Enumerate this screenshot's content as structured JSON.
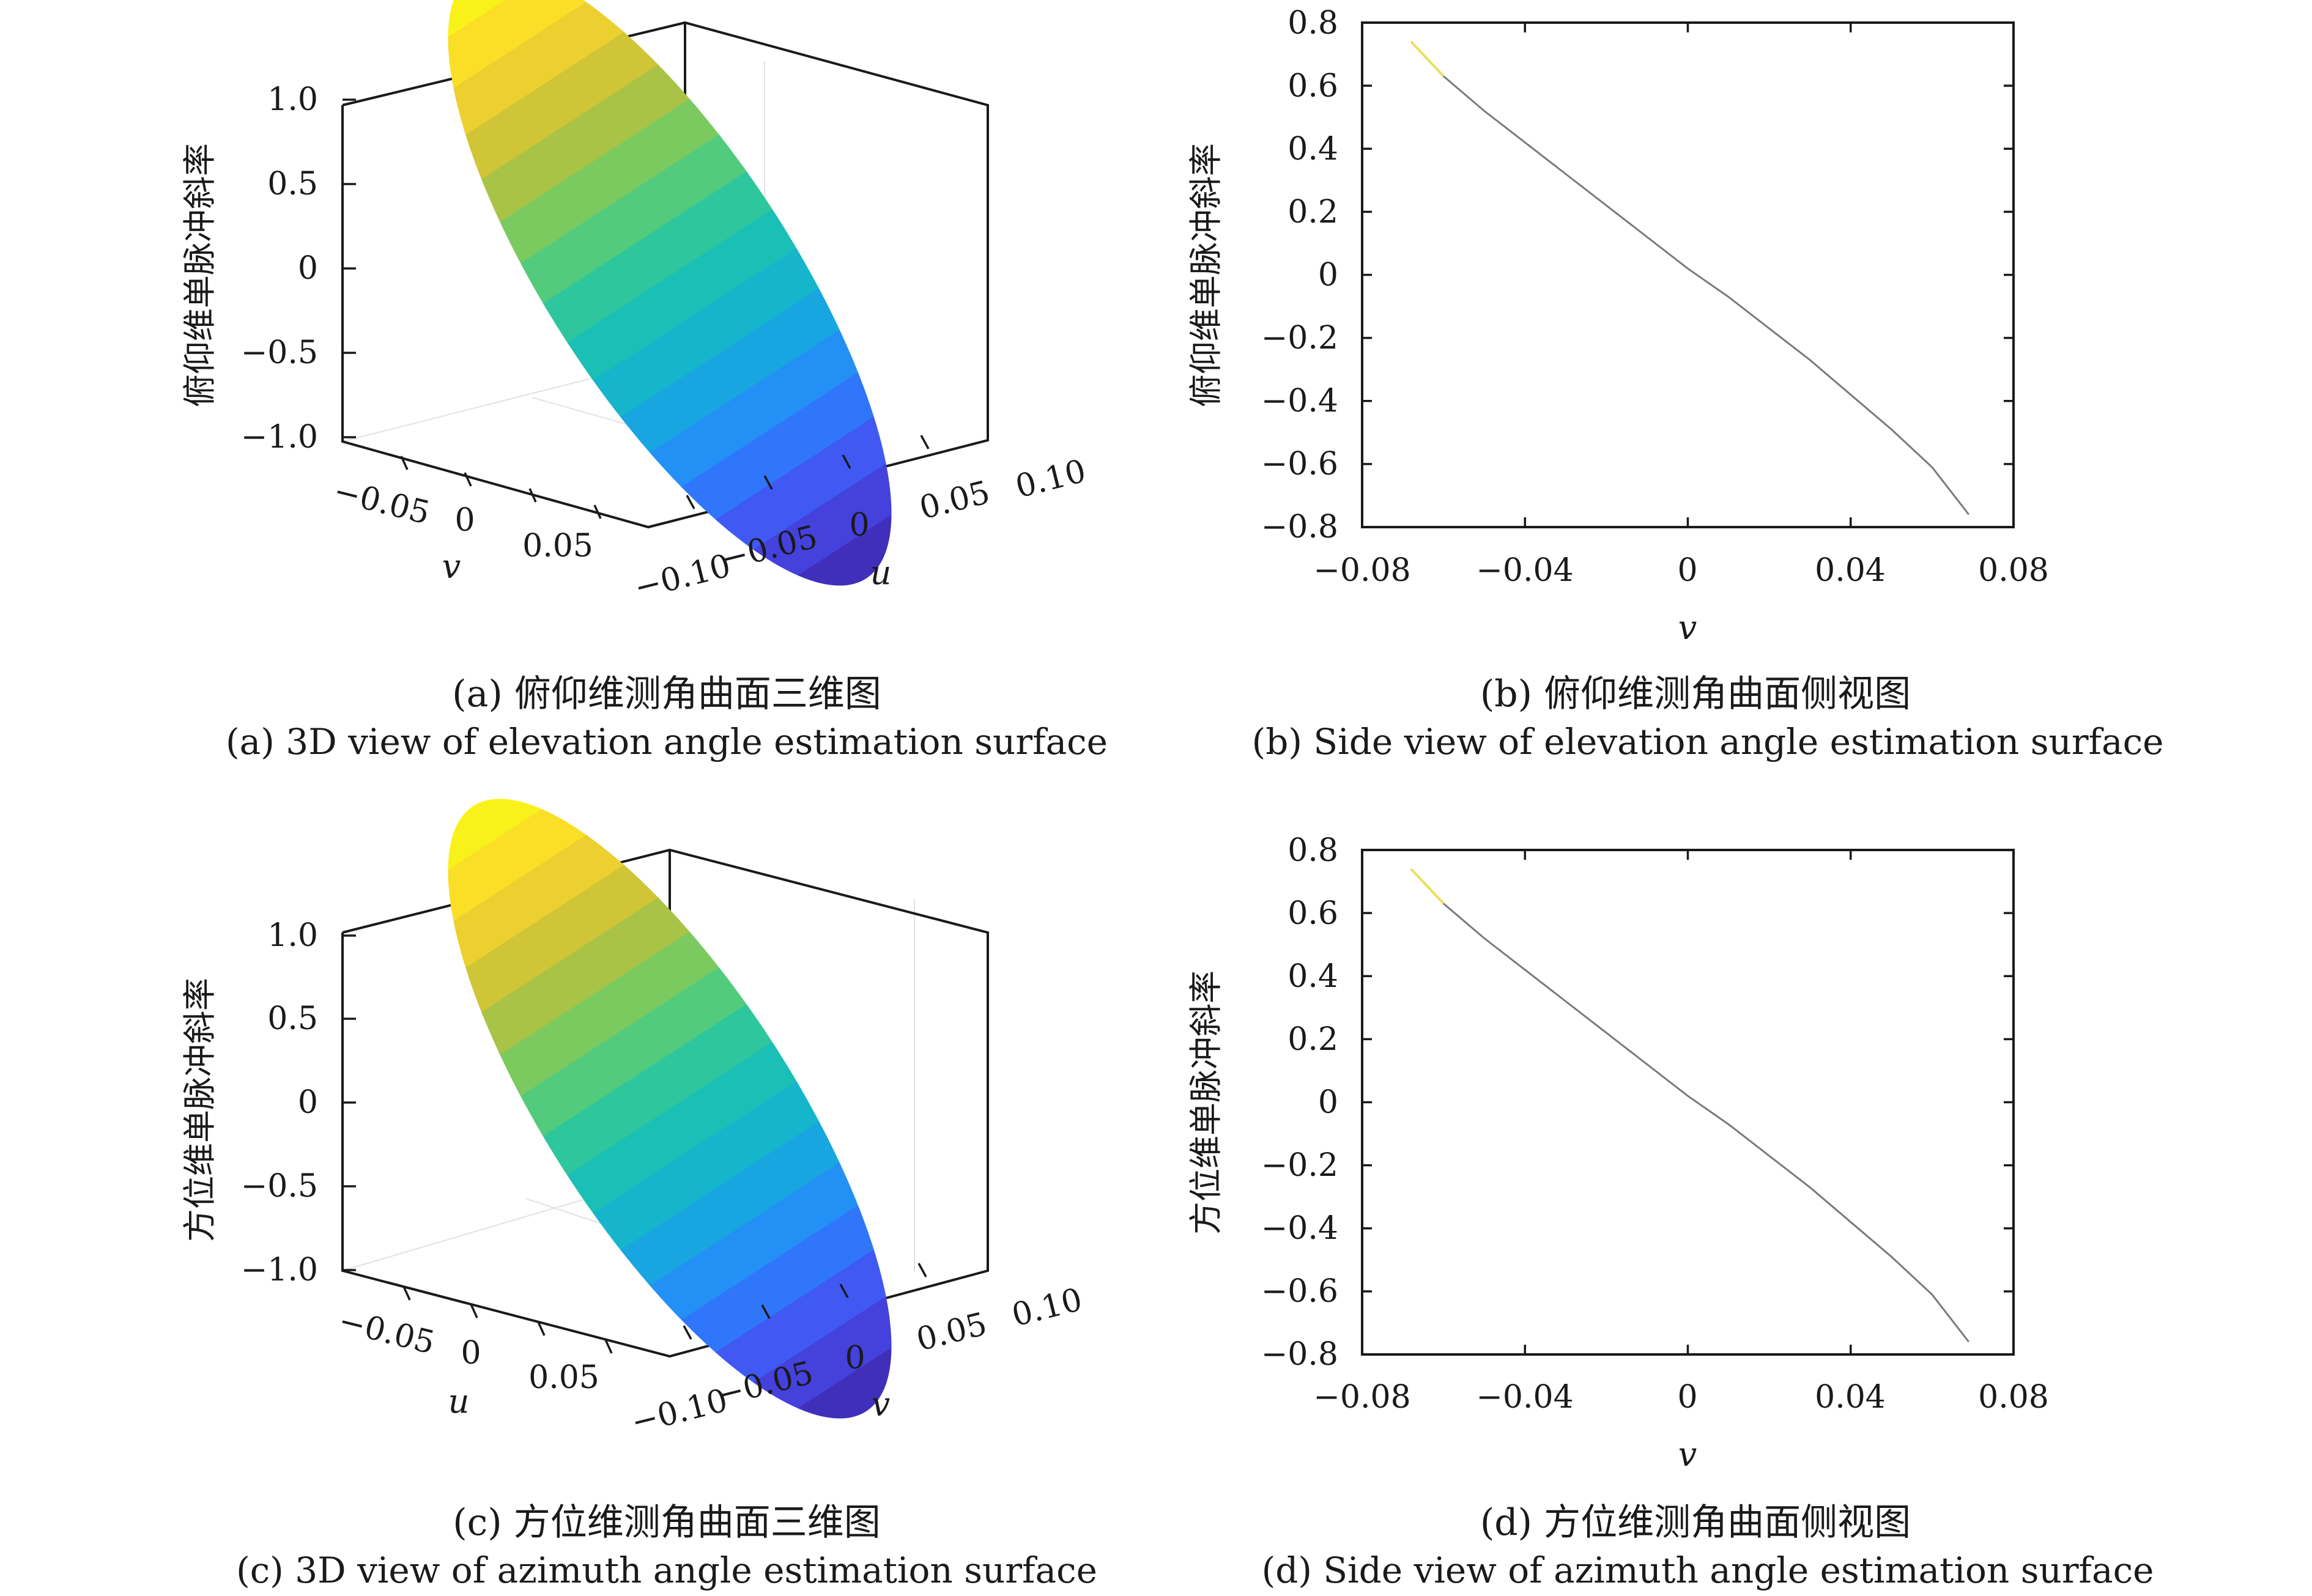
{
  "chart_data": [
    {
      "id": "a",
      "type": "surface3d",
      "zlabel": "俯仰维单脉冲斜率",
      "xlabel": "v",
      "ylabel": "u",
      "xticks": [
        "−0.05",
        "0",
        "0.05"
      ],
      "yticks": [
        "−0.10",
        "−0.05",
        "0",
        "0.05",
        "0.10"
      ],
      "zticks": [
        "1.0",
        "0.5",
        "0",
        "−0.5",
        "−1.0"
      ],
      "zlim": [
        -1.0,
        1.0
      ],
      "surface": {
        "shape": "ellipse",
        "z_range": [
          -0.78,
          0.78
        ],
        "colormap": "parula",
        "bands": 16
      },
      "caption_zh": "(a) 俯仰维测角曲面三维图",
      "caption_en": "(a) 3D view of elevation angle estimation surface"
    },
    {
      "id": "b",
      "type": "line",
      "ylabel": "俯仰维单脉冲斜率",
      "xlabel": "v",
      "xticks": [
        "−0.08",
        "−0.04",
        "0",
        "0.04",
        "0.08"
      ],
      "yticks": [
        "0.8",
        "0.6",
        "0.4",
        "0.2",
        "0",
        "−0.2",
        "−0.4",
        "−0.6",
        "−0.8"
      ],
      "xlim": [
        -0.08,
        0.08
      ],
      "ylim": [
        -0.8,
        0.8
      ],
      "series": [
        {
          "x": [
            -0.068,
            -0.06,
            -0.05,
            -0.04,
            -0.03,
            -0.02,
            -0.01,
            0,
            0.01,
            0.02,
            0.03,
            0.04,
            0.05,
            0.06,
            0.069
          ],
          "y": [
            0.74,
            0.63,
            0.52,
            0.42,
            0.32,
            0.22,
            0.12,
            0.02,
            -0.07,
            -0.17,
            -0.27,
            -0.38,
            -0.49,
            -0.61,
            -0.76
          ]
        }
      ],
      "caption_zh": "(b) 俯仰维测角曲面侧视图",
      "caption_en": "(b) Side view of elevation angle estimation surface"
    },
    {
      "id": "c",
      "type": "surface3d",
      "zlabel": "方位维单脉冲斜率",
      "xlabel": "u",
      "ylabel": "v",
      "xticks": [
        "−0.05",
        "0",
        "0.05"
      ],
      "yticks": [
        "−0.10",
        "−0.05",
        "0",
        "0.05",
        "0.10"
      ],
      "zticks": [
        "1.0",
        "0.5",
        "0",
        "−0.5",
        "−1.0"
      ],
      "zlim": [
        -1.0,
        1.0
      ],
      "surface": {
        "shape": "ellipse",
        "z_range": [
          -0.78,
          0.78
        ],
        "colormap": "parula",
        "bands": 16
      },
      "caption_zh": "(c) 方位维测角曲面三维图",
      "caption_en": "(c) 3D view of azimuth angle estimation surface"
    },
    {
      "id": "d",
      "type": "line",
      "ylabel": "方位维单脉冲斜率",
      "xlabel": "v",
      "xticks": [
        "−0.08",
        "−0.04",
        "0",
        "0.04",
        "0.08"
      ],
      "yticks": [
        "0.8",
        "0.6",
        "0.4",
        "0.2",
        "0",
        "−0.2",
        "−0.4",
        "−0.6",
        "−0.8"
      ],
      "xlim": [
        -0.08,
        0.08
      ],
      "ylim": [
        -0.8,
        0.8
      ],
      "series": [
        {
          "x": [
            -0.068,
            -0.06,
            -0.05,
            -0.04,
            -0.03,
            -0.02,
            -0.01,
            0,
            0.01,
            0.02,
            0.03,
            0.04,
            0.05,
            0.06,
            0.069
          ],
          "y": [
            0.74,
            0.63,
            0.52,
            0.42,
            0.32,
            0.22,
            0.12,
            0.02,
            -0.07,
            -0.17,
            -0.27,
            -0.38,
            -0.49,
            -0.61,
            -0.76
          ]
        }
      ],
      "caption_zh": "(d) 方位维测角曲面侧视图",
      "caption_en": "(d) Side view of azimuth angle estimation surface"
    }
  ]
}
